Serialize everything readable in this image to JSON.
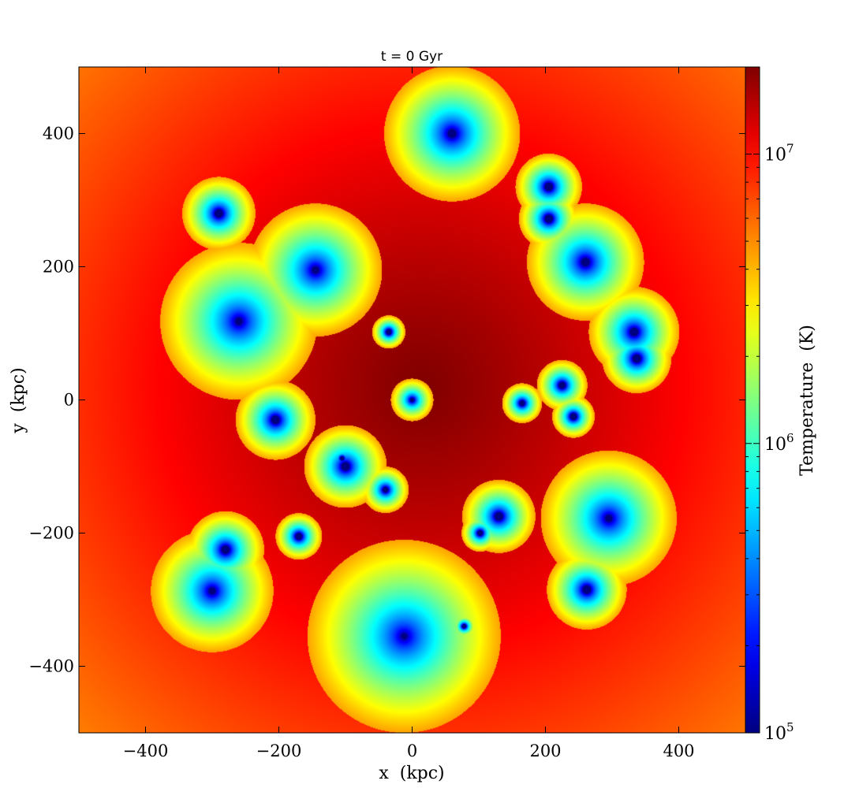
{
  "chart_data": {
    "type": "heatmap",
    "title": "t = 0 Gyr",
    "xlabel": "x  (kpc)",
    "ylabel": "y  (kpc)",
    "xlim": [
      -500,
      500
    ],
    "ylim": [
      -500,
      500
    ],
    "xticks": [
      -400,
      -200,
      0,
      200,
      400
    ],
    "yticks": [
      -400,
      -200,
      0,
      200,
      400
    ],
    "xtick_labels": [
      "−400",
      "−200",
      "0",
      "200",
      "400"
    ],
    "ytick_labels": [
      "−400",
      "−200",
      "0",
      "200",
      "400"
    ],
    "grid": false,
    "colormap": "jet",
    "colorbar": {
      "label": "Temperature  (K)",
      "scale": "log",
      "range": [
        100000,
        20000000
      ],
      "ticks": [
        {
          "value": 100000,
          "base": "10",
          "exp": "5"
        },
        {
          "value": 1000000,
          "base": "10",
          "exp": "6"
        },
        {
          "value": 10000000,
          "base": "10",
          "exp": "7"
        }
      ],
      "minor_ticks": [
        200000,
        300000,
        400000,
        500000,
        600000,
        700000,
        800000,
        900000,
        2000000,
        3000000,
        4000000,
        5000000,
        6000000,
        7000000,
        8000000,
        9000000
      ]
    },
    "background_field": {
      "center": [
        15,
        20
      ],
      "peak_temperature": 20000000,
      "edge_temperature": 4000000,
      "scale_radius": 880
    },
    "subhalos": [
      {
        "x": 60,
        "y": 400,
        "halo_radius": 102,
        "core_radius": 6
      },
      {
        "x": -290,
        "y": 280,
        "halo_radius": 55,
        "core_radius": 6
      },
      {
        "x": 205,
        "y": 320,
        "halo_radius": 50,
        "core_radius": 6
      },
      {
        "x": 205,
        "y": 272,
        "halo_radius": 45,
        "core_radius": 6
      },
      {
        "x": -145,
        "y": 195,
        "halo_radius": 100,
        "core_radius": 5
      },
      {
        "x": 260,
        "y": 207,
        "halo_radius": 88,
        "core_radius": 6
      },
      {
        "x": -260,
        "y": 118,
        "halo_radius": 118,
        "core_radius": 5
      },
      {
        "x": 333,
        "y": 102,
        "halo_radius": 68,
        "core_radius": 6
      },
      {
        "x": 337,
        "y": 62,
        "halo_radius": 52,
        "core_radius": 6
      },
      {
        "x": -35,
        "y": 102,
        "halo_radius": 25,
        "core_radius": 4
      },
      {
        "x": 0,
        "y": 0,
        "halo_radius": 32,
        "core_radius": 3
      },
      {
        "x": 225,
        "y": 22,
        "halo_radius": 38,
        "core_radius": 5
      },
      {
        "x": 165,
        "y": -5,
        "halo_radius": 30,
        "core_radius": 4
      },
      {
        "x": 242,
        "y": -25,
        "halo_radius": 32,
        "core_radius": 5
      },
      {
        "x": -205,
        "y": -30,
        "halo_radius": 60,
        "core_radius": 6
      },
      {
        "x": -100,
        "y": -100,
        "halo_radius": 62,
        "core_radius": 6
      },
      {
        "x": -40,
        "y": -135,
        "halo_radius": 35,
        "core_radius": 4
      },
      {
        "x": -105,
        "y": -88,
        "halo_radius": 20,
        "core_radius": 3
      },
      {
        "x": 130,
        "y": -175,
        "halo_radius": 55,
        "core_radius": 6
      },
      {
        "x": 102,
        "y": -200,
        "halo_radius": 28,
        "core_radius": 4
      },
      {
        "x": 295,
        "y": -178,
        "halo_radius": 102,
        "core_radius": 5
      },
      {
        "x": -170,
        "y": -205,
        "halo_radius": 35,
        "core_radius": 5
      },
      {
        "x": -280,
        "y": -225,
        "halo_radius": 58,
        "core_radius": 6
      },
      {
        "x": -300,
        "y": -287,
        "halo_radius": 92,
        "core_radius": 5
      },
      {
        "x": 262,
        "y": -285,
        "halo_radius": 60,
        "core_radius": 6
      },
      {
        "x": -12,
        "y": -355,
        "halo_radius": 145,
        "core_radius": 4
      },
      {
        "x": 78,
        "y": -340,
        "halo_radius": 18,
        "core_radius": 3
      }
    ]
  }
}
